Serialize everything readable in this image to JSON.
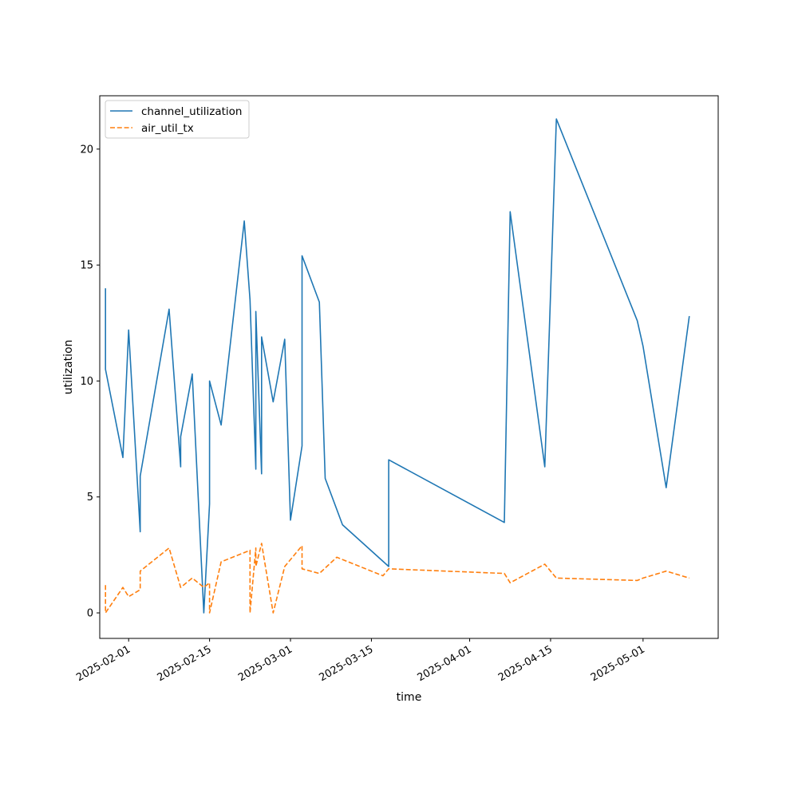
{
  "chart_data": {
    "type": "line",
    "title": "",
    "xlabel": "time",
    "ylabel": "utilization",
    "x_ticks": [
      "2025-02-01",
      "2025-02-15",
      "2025-03-01",
      "2025-03-15",
      "2025-04-01",
      "2025-04-15",
      "2025-05-01"
    ],
    "y_ticks": [
      0,
      5,
      10,
      15,
      20
    ],
    "xlim": [
      "2025-01-27",
      "2025-05-14"
    ],
    "ylim": [
      -1.1,
      22.3
    ],
    "grid": false,
    "legend_position": "top-left",
    "series": [
      {
        "name": "channel_utilization",
        "color": "#1f77b4",
        "style": "solid",
        "points": [
          [
            "2025-01-28",
            14.0
          ],
          [
            "2025-01-28",
            10.5
          ],
          [
            "2025-01-31",
            6.7
          ],
          [
            "2025-02-01",
            12.2
          ],
          [
            "2025-02-03",
            3.5
          ],
          [
            "2025-02-03",
            5.9
          ],
          [
            "2025-02-08",
            13.1
          ],
          [
            "2025-02-10",
            6.3
          ],
          [
            "2025-02-10",
            7.6
          ],
          [
            "2025-02-12",
            10.3
          ],
          [
            "2025-02-14",
            0.0
          ],
          [
            "2025-02-15",
            4.7
          ],
          [
            "2025-02-15",
            10.0
          ],
          [
            "2025-02-17",
            8.1
          ],
          [
            "2025-02-21",
            16.9
          ],
          [
            "2025-02-22",
            13.5
          ],
          [
            "2025-02-23",
            6.2
          ],
          [
            "2025-02-23",
            13.0
          ],
          [
            "2025-02-24",
            6.0
          ],
          [
            "2025-02-24",
            11.9
          ],
          [
            "2025-02-26",
            9.1
          ],
          [
            "2025-02-28",
            11.8
          ],
          [
            "2025-03-01",
            4.0
          ],
          [
            "2025-03-03",
            7.2
          ],
          [
            "2025-03-03",
            15.4
          ],
          [
            "2025-03-06",
            13.4
          ],
          [
            "2025-03-07",
            5.8
          ],
          [
            "2025-03-10",
            3.8
          ],
          [
            "2025-03-18",
            2.0
          ],
          [
            "2025-03-18",
            6.6
          ],
          [
            "2025-04-07",
            3.9
          ],
          [
            "2025-04-08",
            17.3
          ],
          [
            "2025-04-14",
            6.3
          ],
          [
            "2025-04-16",
            21.3
          ],
          [
            "2025-04-30",
            12.6
          ],
          [
            "2025-05-01",
            11.5
          ],
          [
            "2025-05-05",
            5.4
          ],
          [
            "2025-05-09",
            12.8
          ]
        ]
      },
      {
        "name": "air_util_tx",
        "color": "#ff7f0e",
        "style": "dashed",
        "points": [
          [
            "2025-01-28",
            1.2
          ],
          [
            "2025-01-28",
            0.0
          ],
          [
            "2025-01-31",
            1.1
          ],
          [
            "2025-02-01",
            0.7
          ],
          [
            "2025-02-03",
            1.0
          ],
          [
            "2025-02-03",
            1.8
          ],
          [
            "2025-02-08",
            2.8
          ],
          [
            "2025-02-10",
            1.1
          ],
          [
            "2025-02-10",
            1.1
          ],
          [
            "2025-02-12",
            1.5
          ],
          [
            "2025-02-14",
            1.1
          ],
          [
            "2025-02-15",
            1.3
          ],
          [
            "2025-02-15",
            0.0
          ],
          [
            "2025-02-17",
            2.2
          ],
          [
            "2025-02-22",
            2.7
          ],
          [
            "2025-02-22",
            0.0
          ],
          [
            "2025-02-23",
            2.8
          ],
          [
            "2025-02-23",
            2.0
          ],
          [
            "2025-02-24",
            3.0
          ],
          [
            "2025-02-26",
            0.0
          ],
          [
            "2025-02-28",
            2.0
          ],
          [
            "2025-03-03",
            2.9
          ],
          [
            "2025-03-03",
            1.9
          ],
          [
            "2025-03-06",
            1.7
          ],
          [
            "2025-03-09",
            2.4
          ],
          [
            "2025-03-17",
            1.6
          ],
          [
            "2025-03-18",
            1.9
          ],
          [
            "2025-04-07",
            1.7
          ],
          [
            "2025-04-08",
            1.3
          ],
          [
            "2025-04-14",
            2.1
          ],
          [
            "2025-04-16",
            1.5
          ],
          [
            "2025-04-30",
            1.4
          ],
          [
            "2025-05-01",
            1.5
          ],
          [
            "2025-05-05",
            1.8
          ],
          [
            "2025-05-09",
            1.5
          ]
        ]
      }
    ]
  }
}
